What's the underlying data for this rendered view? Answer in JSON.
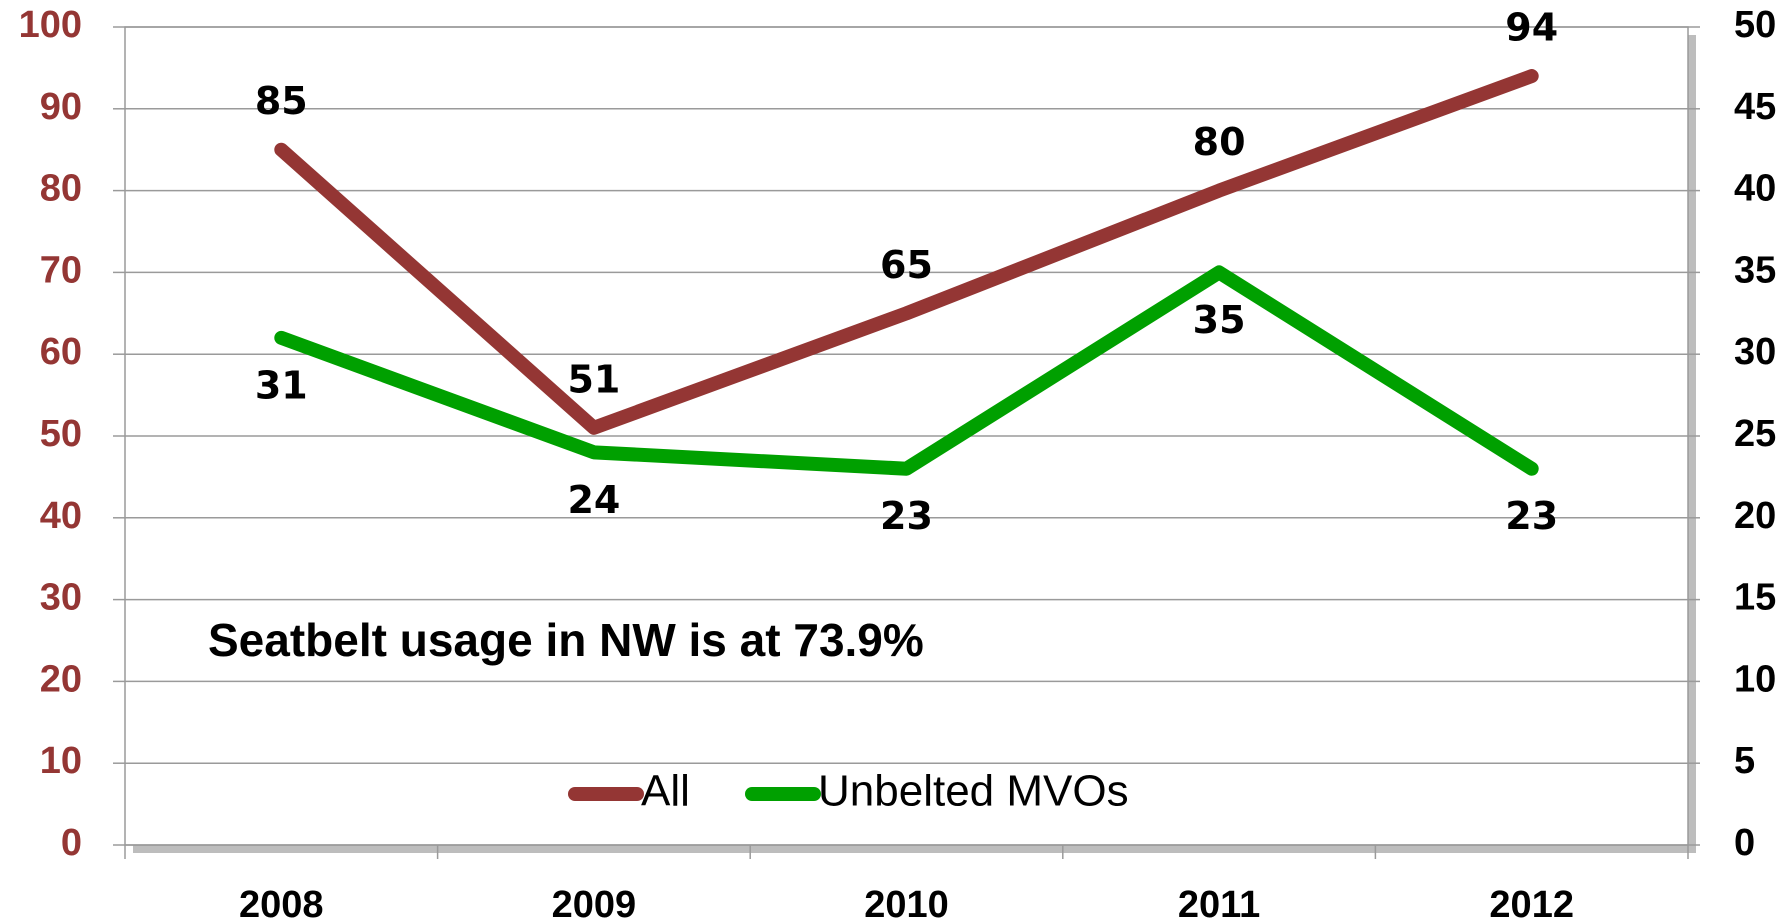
{
  "chart_data": {
    "type": "line",
    "annotation": "Seatbelt usage in NW is at 73.9%",
    "categories": [
      "2008",
      "2009",
      "2010",
      "2011",
      "2012"
    ],
    "series": [
      {
        "name": "All",
        "color": "#943634",
        "values": [
          85,
          51,
          65,
          80,
          94
        ]
      },
      {
        "name": "Unbelted MVOs",
        "color": "#00a000",
        "axis": "y2",
        "values": [
          31,
          24,
          23,
          35,
          23
        ]
      }
    ],
    "ylim": [
      0,
      100
    ],
    "yticks": [
      0,
      10,
      20,
      30,
      40,
      50,
      60,
      70,
      80,
      90,
      100
    ],
    "ytick_color": "#943634",
    "y2lim": [
      0,
      50
    ],
    "y2ticks": [
      0,
      5,
      10,
      15,
      20,
      25,
      30,
      35,
      40,
      45,
      50
    ],
    "grid": true,
    "legend": "bottom"
  }
}
